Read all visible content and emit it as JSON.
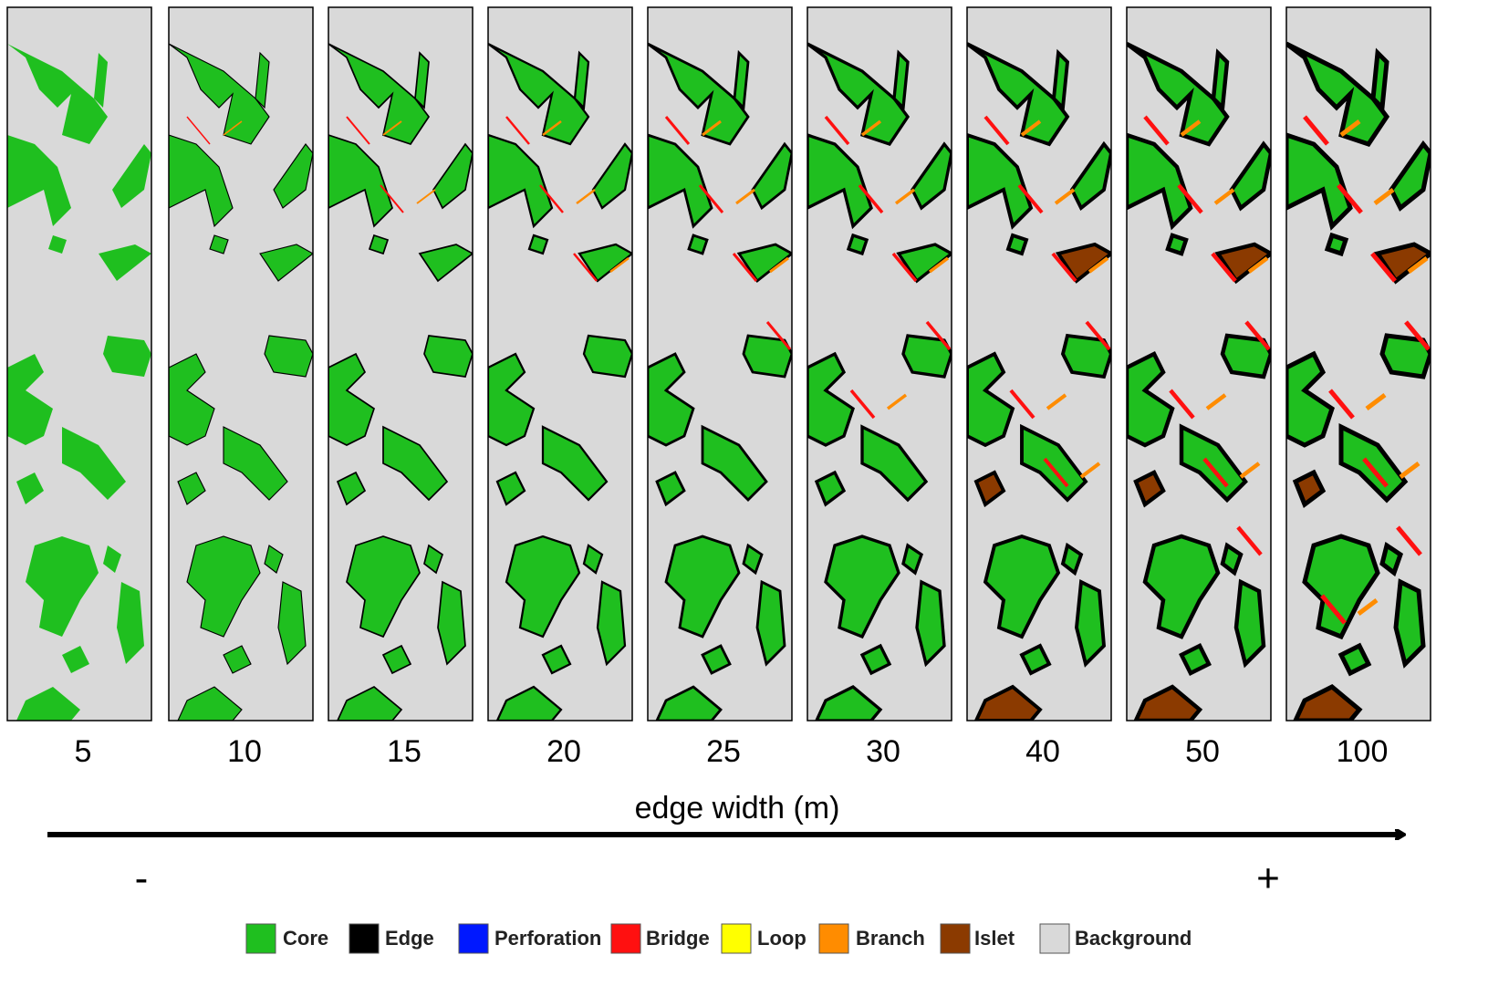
{
  "panels": [
    {
      "label": "5"
    },
    {
      "label": "10"
    },
    {
      "label": "15"
    },
    {
      "label": "20"
    },
    {
      "label": "25"
    },
    {
      "label": "30"
    },
    {
      "label": "40"
    },
    {
      "label": "50"
    },
    {
      "label": "100"
    }
  ],
  "axis_label": "edge width (m)",
  "arrow": {
    "start": "-",
    "end": "+"
  },
  "legend": [
    {
      "name": "Core",
      "color": "#1fbf1f"
    },
    {
      "name": "Edge",
      "color": "#000000"
    },
    {
      "name": "Perforation",
      "color": "#0018ff"
    },
    {
      "name": "Bridge",
      "color": "#ff1010"
    },
    {
      "name": "Loop",
      "color": "#ffff00"
    },
    {
      "name": "Branch",
      "color": "#ff8c00"
    },
    {
      "name": "Islet",
      "color": "#8b3a00"
    },
    {
      "name": "Background",
      "color": "#d9d9d9"
    }
  ]
}
